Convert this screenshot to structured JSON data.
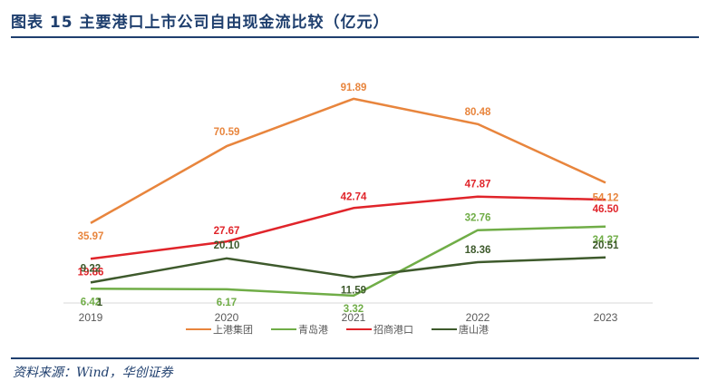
{
  "figure": {
    "title": "图表 15 主要港口上市公司自由现金流比较（亿元）",
    "source": "资料来源：Wind，华创证券"
  },
  "chart_data": {
    "type": "line",
    "x": [
      "2019",
      "2020",
      "2021",
      "2022",
      "2023"
    ],
    "series": [
      {
        "name": "上港集团",
        "color": "#e8853d",
        "values": [
          35.97,
          70.59,
          91.89,
          80.48,
          54.12
        ]
      },
      {
        "name": "青岛港",
        "color": "#70ad47",
        "values": [
          6.42,
          6.17,
          3.32,
          32.76,
          34.37
        ]
      },
      {
        "name": "招商港口",
        "color": "#e0242a",
        "values": [
          19.86,
          27.67,
          42.74,
          47.87,
          46.5
        ]
      },
      {
        "name": "唐山港",
        "color": "#3e5a2c",
        "values": [
          9.22,
          20.1,
          11.59,
          18.36,
          20.51
        ]
      }
    ],
    "extra_labels": [
      {
        "text": "1"
      }
    ],
    "ylim": [
      0,
      100
    ],
    "grid": false,
    "legend_position": "bottom"
  }
}
